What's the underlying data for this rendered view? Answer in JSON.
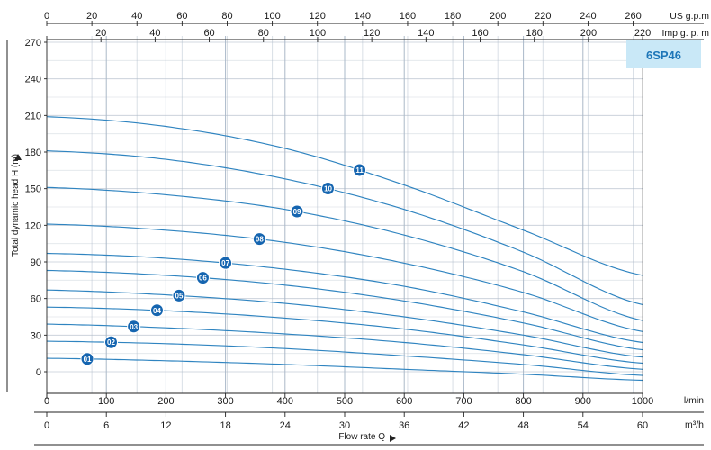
{
  "chart_data": {
    "type": "line",
    "title": "6SP46",
    "ylabel": "Total dynamic head H (m)",
    "xlabel": "Flow rate Q",
    "y_ticks": [
      "270",
      "240",
      "210",
      "180",
      "150",
      "120",
      "90",
      "60",
      "30",
      "0"
    ],
    "ylim": [
      -15,
      270
    ],
    "axes": {
      "lmin": {
        "unit": "l/min",
        "ticks": [
          "0",
          "100",
          "200",
          "300",
          "400",
          "500",
          "600",
          "700",
          "800",
          "900",
          "1000"
        ],
        "range": [
          0,
          1000
        ]
      },
      "m3h": {
        "unit": "m³/h",
        "ticks": [
          "0",
          "6",
          "12",
          "18",
          "24",
          "30",
          "36",
          "42",
          "48",
          "54",
          "60"
        ],
        "range": [
          0,
          60
        ]
      },
      "usgpm": {
        "unit": "US g.p.m",
        "ticks": [
          "0",
          "20",
          "40",
          "60",
          "80",
          "100",
          "120",
          "140",
          "160",
          "180",
          "200",
          "220",
          "240",
          "260"
        ]
      },
      "impgpm": {
        "unit": "Imp g. p. m",
        "ticks": [
          "20",
          "40",
          "60",
          "80",
          "100",
          "120",
          "140",
          "160",
          "180",
          "200",
          "220"
        ]
      }
    },
    "series": [
      {
        "name": "01",
        "x": [
          0,
          200,
          400,
          600,
          800,
          1000
        ],
        "y": [
          11,
          9,
          6,
          2,
          -2,
          -7
        ],
        "label_at": 68
      },
      {
        "name": "02",
        "x": [
          0,
          200,
          400,
          600,
          800,
          1000
        ],
        "y": [
          25,
          23,
          19,
          13,
          6,
          -3
        ],
        "label_at": 108
      },
      {
        "name": "03",
        "x": [
          0,
          200,
          400,
          600,
          800,
          1000
        ],
        "y": [
          39,
          36,
          31,
          24,
          14,
          2
        ],
        "label_at": 146
      },
      {
        "name": "04",
        "x": [
          0,
          200,
          400,
          600,
          800,
          1000
        ],
        "y": [
          53,
          50,
          44,
          35,
          22,
          7
        ],
        "label_at": 185
      },
      {
        "name": "05",
        "x": [
          0,
          200,
          400,
          600,
          800,
          1000
        ],
        "y": [
          67,
          63,
          56,
          45,
          30,
          12
        ],
        "label_at": 222
      },
      {
        "name": "06",
        "x": [
          0,
          200,
          400,
          600,
          800,
          1000
        ],
        "y": [
          83,
          79,
          71,
          58,
          40,
          18
        ],
        "label_at": 262
      },
      {
        "name": "07",
        "x": [
          0,
          200,
          400,
          600,
          800,
          1000
        ],
        "y": [
          97,
          93,
          84,
          70,
          49,
          24
        ],
        "label_at": 300
      },
      {
        "name": "08",
        "x": [
          0,
          200,
          400,
          600,
          800,
          1000
        ],
        "y": [
          121,
          116,
          106,
          89,
          65,
          33
        ],
        "label_at": 357
      },
      {
        "name": "09",
        "x": [
          0,
          200,
          400,
          600,
          800,
          1000
        ],
        "y": [
          151,
          145,
          133,
          112,
          82,
          42
        ],
        "label_at": 420
      },
      {
        "name": "10",
        "x": [
          0,
          200,
          400,
          600,
          800,
          1000
        ],
        "y": [
          181,
          174,
          158,
          133,
          98,
          55
        ],
        "label_at": 472
      },
      {
        "name": "11",
        "x": [
          0,
          200,
          400,
          600,
          800,
          1000
        ],
        "y": [
          209,
          201,
          183,
          153,
          116,
          79
        ],
        "label_at": 525
      }
    ],
    "colors": {
      "curve": "#2f84c0",
      "badge": "#1565b0",
      "title_box": "#c9e8f7",
      "title_text": "#1d76b8"
    }
  }
}
